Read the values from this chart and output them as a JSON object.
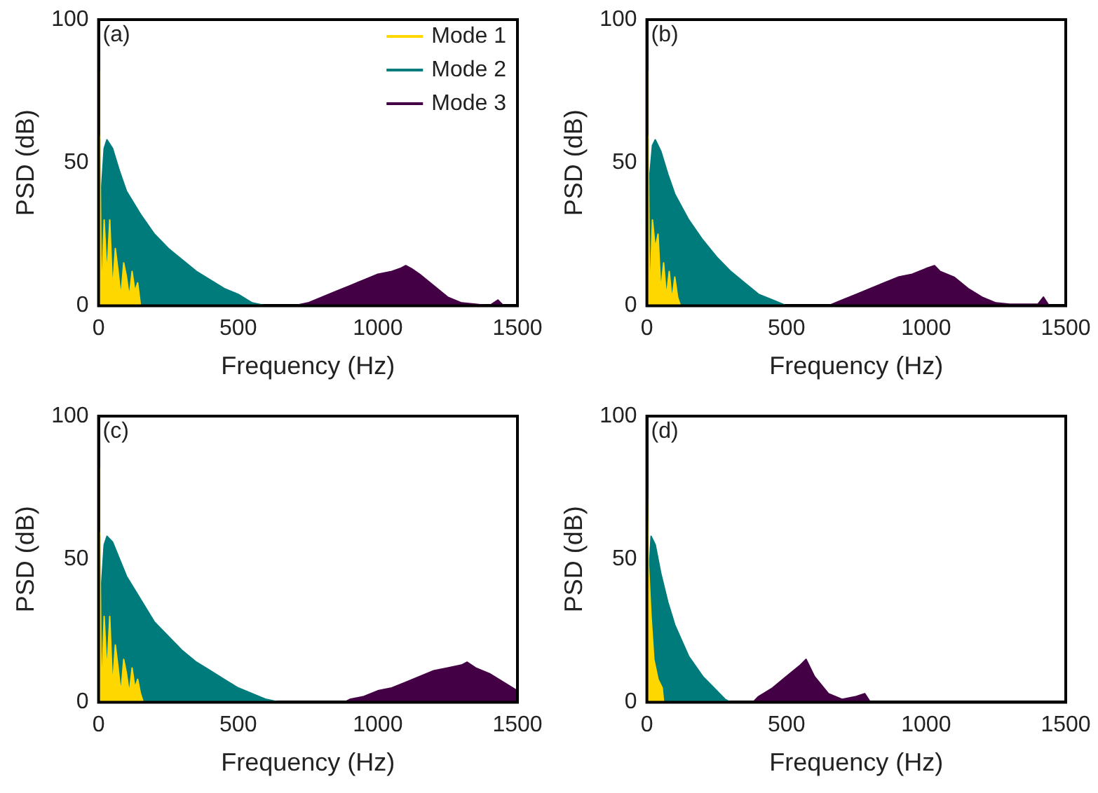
{
  "chart_data": [
    {
      "type": "area",
      "annotations": [
        "(a)"
      ],
      "xlabel": "Frequency (Hz)",
      "ylabel": "PSD (dB)",
      "xlim": [
        0,
        1500
      ],
      "xticks": [
        0,
        500,
        1000,
        1500
      ],
      "ylim": [
        0,
        100
      ],
      "yticks": [
        0,
        50,
        100
      ],
      "grid": false,
      "legend": "top right",
      "series": [
        {
          "name": "Mode 3",
          "color": "#440044",
          "x": [
            700,
            750,
            800,
            850,
            900,
            950,
            1000,
            1050,
            1080,
            1100,
            1120,
            1150,
            1200,
            1250,
            1300,
            1350,
            1400,
            1430,
            1450
          ],
          "values": [
            0,
            1,
            3,
            5,
            7,
            9,
            11,
            12,
            13,
            14,
            13,
            11,
            7,
            3,
            1,
            0.5,
            0,
            2,
            0
          ]
        },
        {
          "name": "Mode 2",
          "color": "#007b7b",
          "x": [
            0,
            5,
            10,
            20,
            30,
            50,
            75,
            100,
            150,
            200,
            250,
            300,
            350,
            400,
            450,
            500,
            550,
            600
          ],
          "values": [
            0,
            28,
            40,
            55,
            58,
            55,
            47,
            40,
            32,
            25,
            20,
            16,
            12,
            9,
            6,
            4,
            1,
            0
          ]
        },
        {
          "name": "Mode 1",
          "color": "#ffd700",
          "x": [
            0,
            2,
            5,
            10,
            20,
            30,
            40,
            50,
            60,
            70,
            80,
            90,
            100,
            110,
            120,
            130,
            140,
            150
          ],
          "values": [
            82,
            60,
            58,
            0,
            30,
            10,
            30,
            5,
            20,
            12,
            3,
            15,
            10,
            3,
            12,
            5,
            8,
            0
          ]
        }
      ]
    },
    {
      "type": "area",
      "annotations": [
        "(b)"
      ],
      "xlabel": "Frequency (Hz)",
      "ylabel": "PSD (dB)",
      "xlim": [
        0,
        1500
      ],
      "xticks": [
        0,
        500,
        1000,
        1500
      ],
      "ylim": [
        0,
        100
      ],
      "yticks": [
        0,
        50,
        100
      ],
      "grid": false,
      "series": [
        {
          "color": "#440044",
          "x": [
            650,
            700,
            750,
            800,
            850,
            900,
            950,
            1000,
            1030,
            1050,
            1100,
            1150,
            1200,
            1250,
            1300,
            1400,
            1420,
            1440
          ],
          "values": [
            0,
            2,
            4,
            6,
            8,
            10,
            11,
            13,
            14,
            12,
            10,
            6,
            3,
            1,
            0.5,
            0.5,
            3,
            0
          ]
        },
        {
          "color": "#007b7b",
          "x": [
            0,
            5,
            10,
            20,
            30,
            50,
            75,
            100,
            150,
            200,
            250,
            300,
            350,
            400,
            450,
            500
          ],
          "values": [
            0,
            30,
            45,
            56,
            58,
            54,
            46,
            39,
            30,
            23,
            17,
            12,
            8,
            4,
            2,
            0
          ]
        },
        {
          "color": "#ffd700",
          "x": [
            0,
            2,
            5,
            10,
            20,
            30,
            40,
            50,
            60,
            70,
            80,
            90,
            100,
            110,
            120
          ],
          "values": [
            82,
            60,
            58,
            0,
            30,
            20,
            25,
            5,
            15,
            3,
            12,
            2,
            10,
            3,
            0
          ]
        }
      ]
    },
    {
      "type": "area",
      "annotations": [
        "(c)"
      ],
      "xlabel": "Frequency (Hz)",
      "ylabel": "PSD (dB)",
      "xlim": [
        0,
        1500
      ],
      "xticks": [
        0,
        500,
        1000,
        1500
      ],
      "ylim": [
        0,
        100
      ],
      "yticks": [
        0,
        50,
        100
      ],
      "grid": false,
      "series": [
        {
          "color": "#440044",
          "x": [
            880,
            900,
            950,
            1000,
            1050,
            1100,
            1150,
            1200,
            1250,
            1300,
            1320,
            1350,
            1400,
            1450,
            1500
          ],
          "values": [
            0,
            1,
            2,
            4,
            5,
            7,
            9,
            11,
            12,
            13,
            14,
            12,
            10,
            7,
            4
          ]
        },
        {
          "color": "#007b7b",
          "x": [
            0,
            5,
            10,
            20,
            30,
            50,
            75,
            100,
            150,
            200,
            250,
            300,
            350,
            400,
            450,
            500,
            550,
            600,
            650
          ],
          "values": [
            0,
            28,
            40,
            55,
            58,
            56,
            50,
            44,
            36,
            28,
            23,
            18,
            14,
            11,
            8,
            5,
            3,
            1,
            0
          ]
        },
        {
          "color": "#ffd700",
          "x": [
            0,
            2,
            5,
            10,
            20,
            30,
            40,
            50,
            60,
            70,
            80,
            90,
            100,
            110,
            120,
            130,
            140,
            150,
            160
          ],
          "values": [
            82,
            60,
            58,
            0,
            30,
            10,
            30,
            5,
            20,
            12,
            3,
            15,
            10,
            3,
            12,
            5,
            8,
            3,
            0
          ]
        }
      ]
    },
    {
      "type": "area",
      "annotations": [
        "(d)"
      ],
      "xlabel": "Frequency (Hz)",
      "ylabel": "PSD (dB)",
      "xlim": [
        0,
        1500
      ],
      "xticks": [
        0,
        500,
        1000,
        1500
      ],
      "ylim": [
        0,
        100
      ],
      "yticks": [
        0,
        50,
        100
      ],
      "grid": false,
      "series": [
        {
          "color": "#440044",
          "x": [
            380,
            400,
            450,
            500,
            550,
            570,
            600,
            650,
            700,
            750,
            780,
            800
          ],
          "values": [
            0,
            2,
            5,
            9,
            13,
            15,
            9,
            3,
            1,
            2,
            3,
            0
          ]
        },
        {
          "color": "#007b7b",
          "x": [
            0,
            5,
            15,
            30,
            50,
            75,
            100,
            150,
            200,
            250,
            280,
            300
          ],
          "values": [
            0,
            40,
            58,
            55,
            45,
            35,
            27,
            16,
            9,
            4,
            1,
            0
          ]
        },
        {
          "color": "#ffd700",
          "x": [
            0,
            5,
            15,
            25,
            40,
            55,
            60
          ],
          "values": [
            82,
            50,
            30,
            15,
            8,
            5,
            0
          ]
        }
      ]
    }
  ]
}
